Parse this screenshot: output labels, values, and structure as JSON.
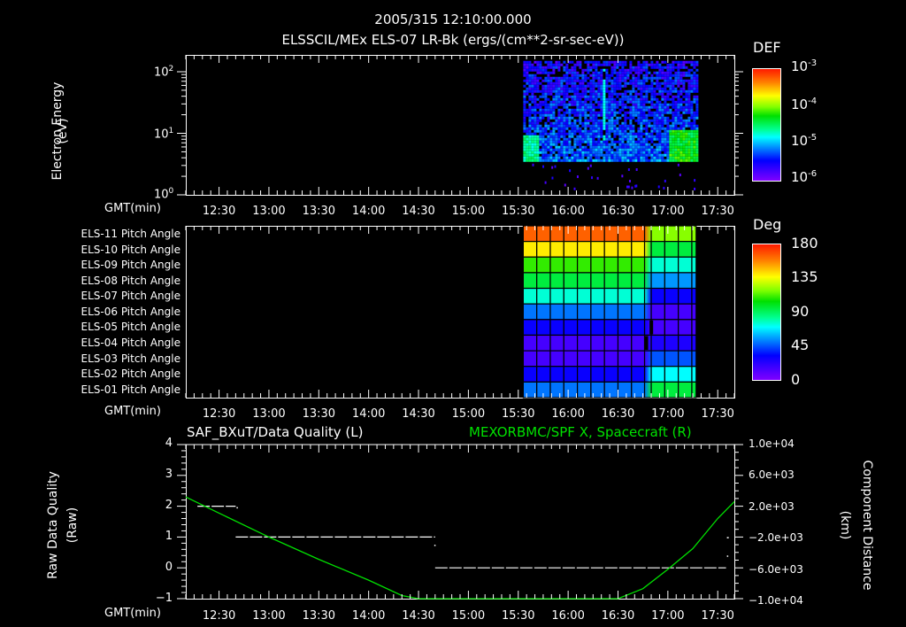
{
  "header": {
    "datetime": "2005/315 12:10:00.000",
    "subtitle": "ELSSCIL/MEx ELS-07 LR-Bk  (ergs/(cm**2-sr-sec-eV))"
  },
  "colors": {
    "background": "#000000",
    "axes": "#ffffff",
    "green_trace": "#00e000"
  },
  "time_axis": {
    "label": "GMT(min)",
    "start": "12:10",
    "end": "17:40",
    "ticks": [
      "12:30",
      "13:00",
      "13:30",
      "14:00",
      "14:30",
      "15:00",
      "15:30",
      "16:00",
      "16:30",
      "17:00",
      "17:30"
    ]
  },
  "panel1": {
    "ylabel_line1": "Electron Energy",
    "ylabel_line2": "(eV)",
    "yticks": [
      {
        "base": "10",
        "exp": "2"
      },
      {
        "base": "10",
        "exp": "1"
      },
      {
        "base": "10",
        "exp": "0"
      }
    ],
    "colorbar": {
      "title": "DEF",
      "ticks": [
        {
          "base": "10",
          "exp": "-3"
        },
        {
          "base": "10",
          "exp": "-4"
        },
        {
          "base": "10",
          "exp": "-5"
        },
        {
          "base": "10",
          "exp": "-6"
        }
      ]
    }
  },
  "panel2": {
    "rows": [
      "ELS-11 Pitch Angle",
      "ELS-10 Pitch Angle",
      "ELS-09 Pitch Angle",
      "ELS-08 Pitch Angle",
      "ELS-07 Pitch Angle",
      "ELS-06 Pitch Angle",
      "ELS-05 Pitch Angle",
      "ELS-04 Pitch Angle",
      "ELS-03 Pitch Angle",
      "ELS-02 Pitch Angle",
      "ELS-01 Pitch Angle"
    ],
    "colorbar": {
      "title": "Deg",
      "ticks": [
        "180",
        "135",
        "90",
        "45",
        "0"
      ]
    }
  },
  "panel3": {
    "left_title": "SAF_BXuT/Data Quality (L)",
    "right_title": "MEXORBMC/SPF X, Spacecraft (R)",
    "ylabel_left_line1": "Raw Data Quality",
    "ylabel_left_line2": "(Raw)",
    "ylabel_right_line1": "Component Distance",
    "ylabel_right_line2": "(km)",
    "yticks_left": [
      "4",
      "3",
      "2",
      "1",
      "0",
      "−1"
    ],
    "yticks_right": [
      "1.0e+04",
      "6.0e+03",
      "2.0e+03",
      "−2.0e+03",
      "−6.0e+03",
      "−1.0e+04"
    ]
  },
  "chart_data": [
    {
      "type": "heatmap",
      "title": "ELSSCIL/MEx ELS-07 LR-Bk (ergs/(cm**2-sr-sec-eV))",
      "xlabel": "GMT(min)",
      "ylabel": "Electron Energy (eV)",
      "yscale": "log",
      "ylim": [
        1,
        160
      ],
      "xlim": [
        "12:10",
        "17:40"
      ],
      "colorbar": {
        "label": "DEF",
        "scale": "log",
        "range": [
          1e-06,
          0.001
        ]
      },
      "data_region": {
        "x_start": "15:33",
        "x_end": "17:17",
        "y_min_eV": 3.5,
        "y_max_eV": 150
      },
      "features": [
        {
          "desc": "elevated flux block (cyan/green ~1e-5)",
          "x": [
            "15:33",
            "15:41"
          ],
          "y_eV": [
            3.5,
            10
          ]
        },
        {
          "desc": "narrow vertical spike (cyan)",
          "x": "16:21",
          "y_eV": [
            8,
            120
          ]
        },
        {
          "desc": "elevated flux block (green ~3e-5)",
          "x": [
            "17:00",
            "17:17"
          ],
          "y_eV": [
            3.5,
            12
          ]
        },
        {
          "desc": "background speckle (purple/blue ~1e-6 to 3e-6)",
          "x": [
            "15:33",
            "17:17"
          ],
          "y_eV": [
            3.5,
            150
          ]
        }
      ]
    },
    {
      "type": "heatmap",
      "title": "ELS Pitch Angle",
      "xlabel": "GMT(min)",
      "colorbar": {
        "label": "Deg",
        "range": [
          0,
          180
        ]
      },
      "categories": [
        "ELS-11",
        "ELS-10",
        "ELS-09",
        "ELS-08",
        "ELS-07",
        "ELS-06",
        "ELS-05",
        "ELS-04",
        "ELS-03",
        "ELS-02",
        "ELS-01"
      ],
      "segments": [
        {
          "x": [
            "15:33",
            "16:46"
          ],
          "values_deg": [
            165,
            140,
            110,
            95,
            75,
            50,
            30,
            15,
            15,
            30,
            50
          ]
        },
        {
          "x": [
            "16:50",
            "17:17"
          ],
          "values_deg": [
            120,
            95,
            75,
            55,
            30,
            15,
            15,
            25,
            45,
            70,
            95
          ]
        }
      ]
    },
    {
      "type": "line",
      "title": "SAF_BXuT/Data Quality (L) / MEXORBMC/SPF X, Spacecraft (R)",
      "xlabel": "GMT(min)",
      "ylabel": "Raw Data Quality (Raw)",
      "ylabel_right": "Component Distance (km)",
      "ylim": [
        -1,
        4
      ],
      "ylim_right": [
        -10000,
        10000
      ],
      "series": [
        {
          "name": "SAF_BXuT/Data Quality",
          "axis": "left",
          "style": "dashed-white",
          "points": [
            {
              "x": "12:17",
              "y": 2
            },
            {
              "x": "12:40",
              "y": 2
            },
            {
              "x": "12:40",
              "y": 1
            },
            {
              "x": "14:40",
              "y": 1
            },
            {
              "x": "14:40",
              "y": 0
            },
            {
              "x": "17:35",
              "y": 0
            }
          ]
        },
        {
          "name": "MEXORBMC/SPF X, Spacecraft",
          "axis": "right",
          "style": "solid-green",
          "x": [
            "12:10",
            "12:30",
            "13:00",
            "13:30",
            "14:00",
            "14:20",
            "14:30",
            "16:30",
            "16:45",
            "17:00",
            "17:15",
            "17:30",
            "17:40"
          ],
          "values": [
            3200,
            1100,
            -2000,
            -4900,
            -7600,
            -9600,
            -10000,
            -10000,
            -8700,
            -6200,
            -3500,
            400,
            2600
          ]
        }
      ]
    }
  ]
}
